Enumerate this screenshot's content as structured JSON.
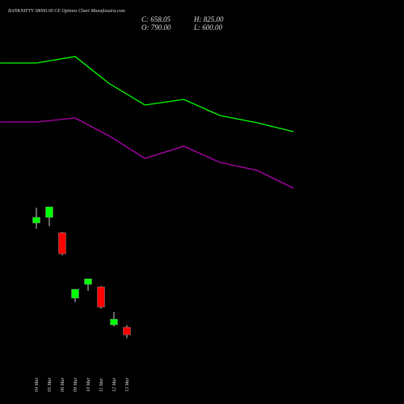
{
  "chart_data": {
    "type": "candlestick",
    "title": "BANKNIFTY 58000.00 CE Options Chart Munafasutra.com",
    "ohlc_labels": [
      "C: 658.05",
      "H: 825.00",
      "O: 790.00",
      "L: 600.00"
    ],
    "categories": [
      "04 Mar",
      "05 Mar",
      "06 Mar",
      "09 Mar",
      "10 Mar",
      "11 Mar",
      "12 Mar",
      "13 Mar"
    ],
    "open": [
      2596,
      2694,
      2428,
      1294,
      1532,
      1490,
      832,
      790
    ],
    "high": [
      2862,
      2876,
      2442,
      1448,
      1630,
      1504,
      1056,
      825
    ],
    "low": [
      2498,
      2540,
      2036,
      1224,
      1420,
      1112,
      804,
      600
    ],
    "close": [
      2694,
      2876,
      2064,
      1448,
      1630,
      1140,
      930,
      658.05
    ],
    "up_color": "#00ff00",
    "down_color": "#ff0000",
    "ylim": [
      300,
      5900
    ],
    "xlim": [
      -2.8125,
      28.4375
    ],
    "lines": [
      {
        "color": "#00ff00",
        "x": [
          -2.8,
          0,
          3,
          5.6,
          8.4,
          11.4,
          14.2,
          17.1,
          19.9
        ],
        "values": [
          5368,
          5368,
          5480,
          5018,
          4640,
          4738,
          4458,
          4332,
          4178
        ]
      },
      {
        "color": "#b000b0",
        "x": [
          -2.8,
          0,
          3,
          5.6,
          8.4,
          11.4,
          14.2,
          17.1,
          19.9
        ],
        "values": [
          4346,
          4346,
          4416,
          4108,
          3716,
          3926,
          3646,
          3506,
          3198
        ]
      }
    ]
  }
}
